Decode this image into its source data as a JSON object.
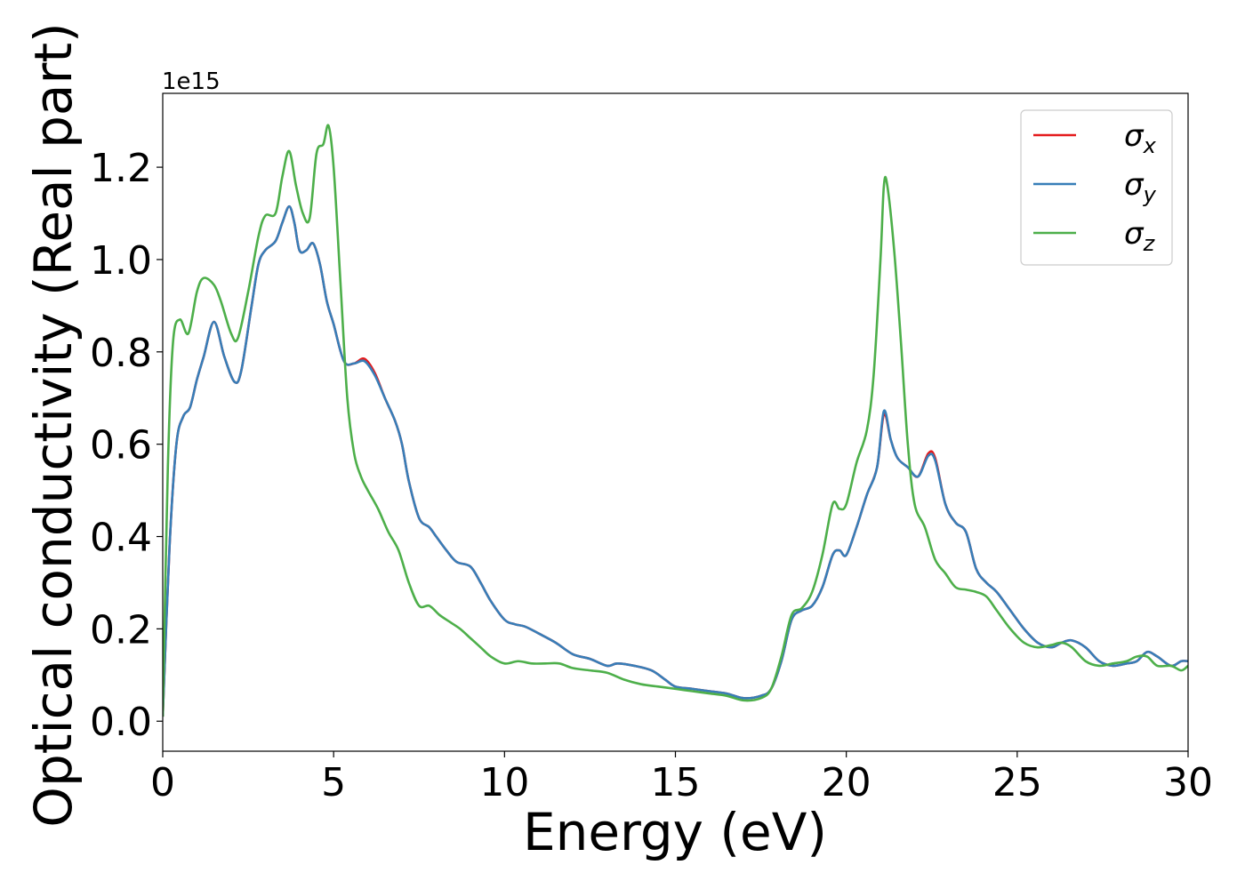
{
  "chart_data": {
    "type": "line",
    "xlabel": "Energy (eV)",
    "ylabel": "Optical conductivity (Real part)",
    "offset_text": "1e15",
    "xlim": [
      0,
      30
    ],
    "ylim": [
      -0.065,
      1.36
    ],
    "xticks": [
      0,
      5,
      10,
      15,
      20,
      25,
      30
    ],
    "yticks": [
      0.0,
      0.2,
      0.4,
      0.6,
      0.8,
      1.0,
      1.2
    ],
    "legend_position": "top-right",
    "grid": false,
    "series": [
      {
        "name": "σx",
        "legend_base": "σ",
        "legend_sub": "x",
        "color": "#e41a1c",
        "x": [
          0,
          0.2,
          0.4,
          0.6,
          0.8,
          1.0,
          1.2,
          1.5,
          1.8,
          2.1,
          2.3,
          2.6,
          2.8,
          3.0,
          3.3,
          3.5,
          3.7,
          3.85,
          4.0,
          4.2,
          4.4,
          4.6,
          4.8,
          5.0,
          5.3,
          5.6,
          5.9,
          6.2,
          6.5,
          6.8,
          7.0,
          7.2,
          7.5,
          7.8,
          8.0,
          8.3,
          8.6,
          9.0,
          9.3,
          9.6,
          10.0,
          10.3,
          10.6,
          11.0,
          11.5,
          12.0,
          12.5,
          13.0,
          13.3,
          13.8,
          14.3,
          14.7,
          15.0,
          15.5,
          16.0,
          16.5,
          17.0,
          17.5,
          17.8,
          18.1,
          18.4,
          18.7,
          19.0,
          19.3,
          19.6,
          19.8,
          20.0,
          20.3,
          20.6,
          20.9,
          21.1,
          21.3,
          21.5,
          21.8,
          22.1,
          22.4,
          22.6,
          22.9,
          23.2,
          23.5,
          23.8,
          24.1,
          24.4,
          24.8,
          25.2,
          25.6,
          26.0,
          26.3,
          26.6,
          27.0,
          27.4,
          27.8,
          28.2,
          28.5,
          28.8,
          29.1,
          29.5,
          29.8,
          30.0
        ],
        "y": [
          0.01,
          0.38,
          0.6,
          0.66,
          0.68,
          0.74,
          0.79,
          0.865,
          0.79,
          0.735,
          0.76,
          0.9,
          0.99,
          1.02,
          1.04,
          1.08,
          1.115,
          1.08,
          1.02,
          1.02,
          1.035,
          0.99,
          0.91,
          0.86,
          0.78,
          0.775,
          0.785,
          0.755,
          0.7,
          0.65,
          0.6,
          0.52,
          0.44,
          0.42,
          0.4,
          0.37,
          0.345,
          0.335,
          0.3,
          0.26,
          0.22,
          0.21,
          0.205,
          0.19,
          0.17,
          0.145,
          0.135,
          0.12,
          0.125,
          0.12,
          0.11,
          0.09,
          0.075,
          0.07,
          0.065,
          0.06,
          0.05,
          0.055,
          0.07,
          0.13,
          0.22,
          0.24,
          0.25,
          0.29,
          0.36,
          0.37,
          0.36,
          0.42,
          0.49,
          0.55,
          0.665,
          0.61,
          0.57,
          0.55,
          0.53,
          0.58,
          0.57,
          0.47,
          0.43,
          0.41,
          0.33,
          0.3,
          0.28,
          0.24,
          0.2,
          0.17,
          0.16,
          0.17,
          0.175,
          0.16,
          0.13,
          0.12,
          0.125,
          0.13,
          0.15,
          0.14,
          0.12,
          0.13,
          0.13
        ]
      },
      {
        "name": "σy",
        "legend_base": "σ",
        "legend_sub": "y",
        "color": "#377eb8",
        "x": [
          0,
          0.2,
          0.4,
          0.6,
          0.8,
          1.0,
          1.2,
          1.5,
          1.8,
          2.1,
          2.3,
          2.6,
          2.8,
          3.0,
          3.3,
          3.5,
          3.7,
          3.85,
          4.0,
          4.2,
          4.4,
          4.6,
          4.8,
          5.0,
          5.3,
          5.6,
          5.9,
          6.2,
          6.5,
          6.8,
          7.0,
          7.2,
          7.5,
          7.8,
          8.0,
          8.3,
          8.6,
          9.0,
          9.3,
          9.6,
          10.0,
          10.3,
          10.6,
          11.0,
          11.5,
          12.0,
          12.5,
          13.0,
          13.3,
          13.8,
          14.3,
          14.7,
          15.0,
          15.5,
          16.0,
          16.5,
          17.0,
          17.5,
          17.8,
          18.1,
          18.4,
          18.7,
          19.0,
          19.3,
          19.6,
          19.8,
          20.0,
          20.3,
          20.6,
          20.9,
          21.1,
          21.3,
          21.5,
          21.8,
          22.1,
          22.4,
          22.6,
          22.9,
          23.2,
          23.5,
          23.8,
          24.1,
          24.4,
          24.8,
          25.2,
          25.6,
          26.0,
          26.3,
          26.6,
          27.0,
          27.4,
          27.8,
          28.2,
          28.5,
          28.8,
          29.1,
          29.5,
          29.8,
          30.0
        ],
        "y": [
          0.01,
          0.38,
          0.6,
          0.66,
          0.68,
          0.74,
          0.79,
          0.865,
          0.79,
          0.735,
          0.76,
          0.9,
          0.99,
          1.02,
          1.04,
          1.08,
          1.115,
          1.08,
          1.02,
          1.02,
          1.035,
          0.99,
          0.91,
          0.86,
          0.78,
          0.775,
          0.78,
          0.75,
          0.7,
          0.65,
          0.6,
          0.52,
          0.44,
          0.42,
          0.4,
          0.37,
          0.345,
          0.335,
          0.3,
          0.26,
          0.22,
          0.21,
          0.205,
          0.19,
          0.17,
          0.145,
          0.135,
          0.12,
          0.125,
          0.12,
          0.11,
          0.09,
          0.075,
          0.07,
          0.065,
          0.06,
          0.05,
          0.055,
          0.07,
          0.13,
          0.22,
          0.24,
          0.25,
          0.29,
          0.36,
          0.37,
          0.36,
          0.42,
          0.49,
          0.55,
          0.672,
          0.61,
          0.57,
          0.55,
          0.53,
          0.575,
          0.565,
          0.47,
          0.43,
          0.41,
          0.33,
          0.3,
          0.28,
          0.24,
          0.2,
          0.17,
          0.16,
          0.17,
          0.175,
          0.16,
          0.13,
          0.12,
          0.125,
          0.13,
          0.15,
          0.14,
          0.12,
          0.13,
          0.13
        ]
      },
      {
        "name": "σz",
        "legend_base": "σ",
        "legend_sub": "z",
        "color": "#4daf4a",
        "x": [
          0,
          0.15,
          0.3,
          0.5,
          0.75,
          1.0,
          1.2,
          1.5,
          1.7,
          2.0,
          2.2,
          2.5,
          2.8,
          3.0,
          3.3,
          3.5,
          3.7,
          3.9,
          4.1,
          4.3,
          4.5,
          4.7,
          4.85,
          5.0,
          5.2,
          5.4,
          5.6,
          5.8,
          6.0,
          6.3,
          6.6,
          6.9,
          7.2,
          7.5,
          7.8,
          8.1,
          8.4,
          8.7,
          9.0,
          9.3,
          9.6,
          10.0,
          10.4,
          10.8,
          11.2,
          11.6,
          12.0,
          12.5,
          13.0,
          13.5,
          14.0,
          14.5,
          15.0,
          15.5,
          16.0,
          16.5,
          17.0,
          17.5,
          17.8,
          18.1,
          18.4,
          18.7,
          19.0,
          19.3,
          19.6,
          19.8,
          20.0,
          20.3,
          20.6,
          20.8,
          21.0,
          21.1,
          21.2,
          21.4,
          21.6,
          21.8,
          22.0,
          22.3,
          22.6,
          22.9,
          23.2,
          23.5,
          23.8,
          24.1,
          24.4,
          24.8,
          25.2,
          25.6,
          26.0,
          26.3,
          26.6,
          27.0,
          27.4,
          27.8,
          28.2,
          28.5,
          28.8,
          29.1,
          29.5,
          29.8,
          30.0
        ],
        "y": [
          0.01,
          0.55,
          0.82,
          0.87,
          0.84,
          0.93,
          0.96,
          0.945,
          0.91,
          0.84,
          0.83,
          0.93,
          1.05,
          1.095,
          1.1,
          1.18,
          1.235,
          1.16,
          1.1,
          1.09,
          1.23,
          1.25,
          1.29,
          1.2,
          0.95,
          0.7,
          0.58,
          0.53,
          0.5,
          0.46,
          0.41,
          0.37,
          0.3,
          0.25,
          0.25,
          0.23,
          0.215,
          0.2,
          0.18,
          0.16,
          0.14,
          0.125,
          0.13,
          0.125,
          0.125,
          0.125,
          0.115,
          0.11,
          0.105,
          0.09,
          0.08,
          0.075,
          0.07,
          0.065,
          0.06,
          0.055,
          0.045,
          0.05,
          0.07,
          0.14,
          0.23,
          0.245,
          0.28,
          0.36,
          0.47,
          0.46,
          0.47,
          0.56,
          0.63,
          0.75,
          1.0,
          1.16,
          1.16,
          1.02,
          0.82,
          0.6,
          0.47,
          0.42,
          0.35,
          0.32,
          0.29,
          0.285,
          0.28,
          0.27,
          0.24,
          0.2,
          0.17,
          0.16,
          0.165,
          0.17,
          0.16,
          0.13,
          0.12,
          0.125,
          0.13,
          0.14,
          0.14,
          0.12,
          0.12,
          0.11,
          0.12
        ]
      }
    ]
  }
}
